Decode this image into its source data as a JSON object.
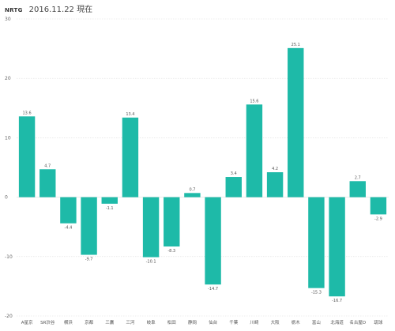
{
  "header": {
    "tag": "NRTG",
    "title": "2016.11.22 現在"
  },
  "chart_data": {
    "type": "bar",
    "title": "2016.11.22 現在",
    "categories": [
      "A星京",
      "SR渋谷",
      "横浜",
      "京都",
      "三鷹",
      "三河",
      "岐阜",
      "松田",
      "静岡",
      "仙台",
      "千葉",
      "川崎",
      "大阪",
      "栃木",
      "富山",
      "北海道",
      "名古屋D",
      "琉球"
    ],
    "values": [
      13.6,
      4.7,
      -4.4,
      -9.7,
      -1.1,
      13.4,
      -10.1,
      -8.3,
      0.7,
      -14.7,
      3.4,
      15.6,
      4.2,
      25.1,
      -15.3,
      -16.7,
      2.7,
      -2.9
    ],
    "value_labels": [
      "13.6",
      "4.7",
      "-4.4",
      "-9.7",
      "-1.1",
      "13.4",
      "-10.1",
      "-8.3",
      "0.7",
      "-14.7",
      "3.4",
      "15.6",
      "4.2",
      "25.1",
      "-15.3",
      "-16.7",
      "2.7",
      "-2.9"
    ],
    "yticks": [
      30,
      20,
      10,
      0,
      -10,
      -20
    ],
    "ytick_labels": [
      "30",
      "20",
      "10",
      "0",
      "-10",
      "-20"
    ],
    "ylim": [
      -20,
      30
    ],
    "grid": true,
    "bar_color": "#1ebaa8",
    "grid_color": "#dddddd",
    "xlabel": "",
    "ylabel": ""
  }
}
